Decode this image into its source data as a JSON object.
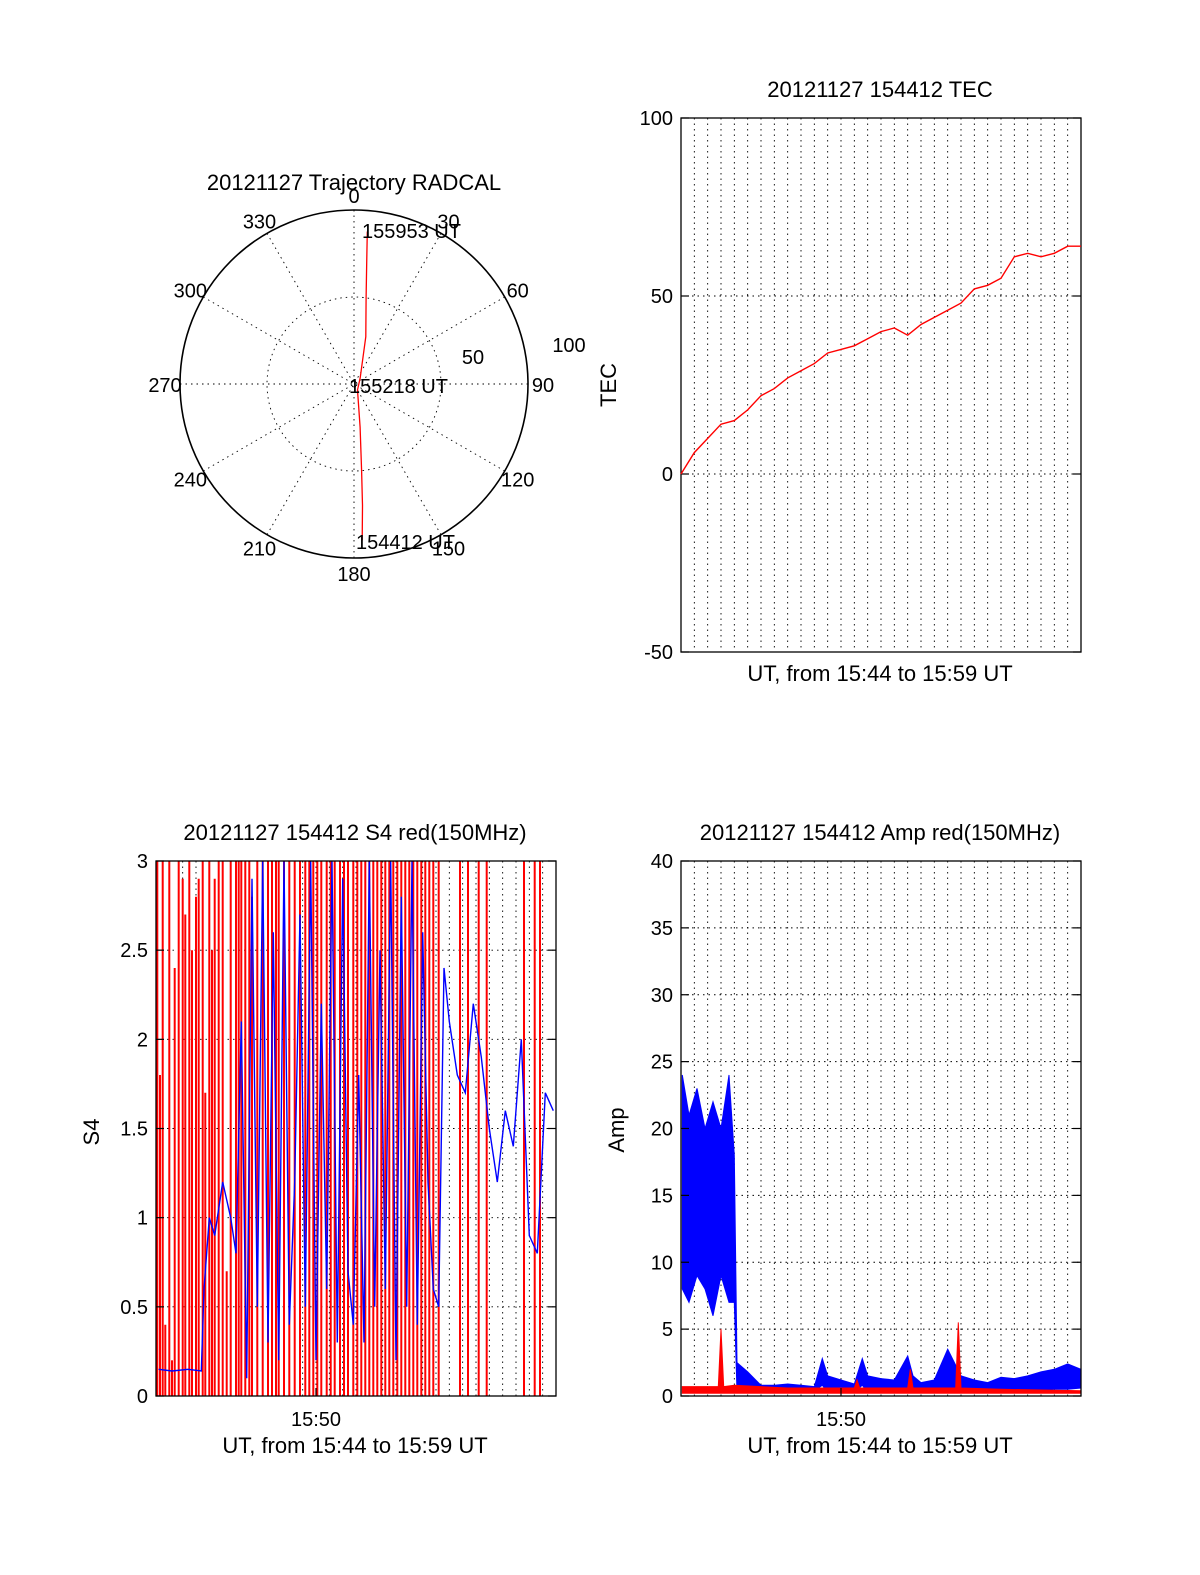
{
  "chart_data": [
    {
      "type": "polar",
      "title": "20121127 Trajectory RADCAL",
      "angle_labels": [
        "0",
        "30",
        "60",
        "90",
        "120",
        "150",
        "180",
        "210",
        "240",
        "270",
        "300",
        "330"
      ],
      "radius_labels": [
        "50",
        "100"
      ],
      "rmax": 100,
      "grid": true,
      "annotations": [
        {
          "label": "155953 UT",
          "az": 5,
          "r": 88
        },
        {
          "label": "155218 UT",
          "az": 0,
          "r": 0
        },
        {
          "label": "154412 UT",
          "az": 177,
          "r": 90
        }
      ],
      "trajectory": [
        {
          "az": 5,
          "r": 88
        },
        {
          "az": 6,
          "r": 70
        },
        {
          "az": 8,
          "r": 50
        },
        {
          "az": 14,
          "r": 28
        },
        {
          "az": 45,
          "r": 5
        },
        {
          "az": 150,
          "r": 4
        },
        {
          "az": 172,
          "r": 25
        },
        {
          "az": 175,
          "r": 50
        },
        {
          "az": 176,
          "r": 70
        },
        {
          "az": 177,
          "r": 90
        }
      ],
      "trajectory_color": "#ff0000"
    },
    {
      "type": "line",
      "title": "20121127 154412 TEC",
      "xlabel": "UT, from 15:44 to 15:59 UT",
      "ylabel": "TEC",
      "xlim": [
        0,
        15
      ],
      "ylim": [
        -50,
        100
      ],
      "yticks": [
        "100",
        "50",
        "0",
        "-50"
      ],
      "xticks": [],
      "grid": true,
      "series": [
        {
          "color": "#ff0000",
          "x": [
            0,
            0.5,
            1,
            1.5,
            2,
            2.5,
            3,
            3.5,
            4,
            4.5,
            5,
            5.5,
            6,
            6.5,
            7,
            7.5,
            8,
            8.5,
            9,
            9.5,
            10,
            10.5,
            11,
            11.5,
            12,
            12.5,
            13,
            13.5,
            14,
            14.5,
            15
          ],
          "y": [
            0,
            6,
            10,
            14,
            15,
            18,
            22,
            24,
            27,
            29,
            31,
            34,
            35,
            36,
            38,
            40,
            41,
            39,
            42,
            44,
            46,
            48,
            52,
            53,
            55,
            61,
            62,
            61,
            62,
            64,
            64
          ]
        }
      ]
    },
    {
      "type": "line",
      "title": "20121127 154412 S4 red(150MHz)",
      "xlabel": "UT, from 15:44 to 15:59 UT",
      "ylabel": "S4",
      "xlim": [
        0,
        15
      ],
      "ylim": [
        0,
        3
      ],
      "yticks": [
        "3",
        "2.5",
        "2",
        "1.5",
        "1",
        "0.5",
        "0"
      ],
      "xticks": [
        {
          "x": 6,
          "label": "15:50"
        }
      ],
      "grid": true,
      "series": [
        {
          "color": "#ff0000",
          "pattern": "spikes",
          "x": [
            0.05,
            0.15,
            0.25,
            0.35,
            0.5,
            0.6,
            0.7,
            0.85,
            1.0,
            1.1,
            1.25,
            1.35,
            1.5,
            1.6,
            1.75,
            1.85,
            2.0,
            2.1,
            2.2,
            2.35,
            2.5,
            2.65,
            2.8,
            3.0,
            3.1,
            3.2,
            3.35,
            3.5,
            3.6,
            3.8,
            4.0,
            4.2,
            4.35,
            4.5,
            4.6,
            4.8,
            5.0,
            5.2,
            5.4,
            5.6,
            5.75,
            5.9,
            6.05,
            6.2,
            6.4,
            6.55,
            6.7,
            6.9,
            7.05,
            7.2,
            7.4,
            7.55,
            7.7,
            7.85,
            8.0,
            8.15,
            8.3,
            8.45,
            8.6,
            8.75,
            8.9,
            9.05,
            9.2,
            9.35,
            9.5,
            9.65,
            9.8,
            9.95,
            10.1,
            10.25,
            10.4,
            10.6,
            11.4,
            11.7,
            12.1,
            12.4,
            13.8,
            14.2,
            14.4
          ],
          "y": [
            3,
            1.8,
            3,
            0.4,
            3,
            0.2,
            2.4,
            3,
            2.9,
            2.7,
            3,
            2.5,
            2.8,
            2.9,
            3,
            1.7,
            3,
            2.5,
            2.9,
            3,
            3,
            0.7,
            3,
            3,
            3,
            3,
            3,
            3,
            2.8,
            3,
            3,
            3,
            3,
            3,
            3,
            3,
            3,
            3,
            3,
            3,
            3,
            3,
            3,
            3,
            3,
            3,
            3,
            3,
            3,
            3,
            3,
            3,
            3,
            3,
            3,
            3,
            3,
            3,
            3,
            3,
            3,
            3,
            3,
            3,
            3,
            3,
            3,
            3,
            3,
            3,
            3,
            3,
            3,
            3,
            3,
            3,
            3,
            3,
            3
          ]
        },
        {
          "color": "#0000ff",
          "pattern": "line",
          "x": [
            0.1,
            0.6,
            1.2,
            1.7,
            1.8,
            2.0,
            2.2,
            2.5,
            2.8,
            3.0,
            3.2,
            3.4,
            3.6,
            3.8,
            4.0,
            4.2,
            4.4,
            4.6,
            4.8,
            5.0,
            5.2,
            5.4,
            5.6,
            5.8,
            6.0,
            6.2,
            6.4,
            6.6,
            6.8,
            7.0,
            7.2,
            7.4,
            7.6,
            7.8,
            8.0,
            8.2,
            8.4,
            8.6,
            8.8,
            9.0,
            9.2,
            9.4,
            9.6,
            9.8,
            10.0,
            10.2,
            10.4,
            10.6,
            10.8,
            11.0,
            11.3,
            11.6,
            11.9,
            12.2,
            12.5,
            12.8,
            13.1,
            13.4,
            13.7,
            14.0,
            14.3,
            14.6,
            14.9
          ],
          "y": [
            0.15,
            0.14,
            0.15,
            0.14,
            0.6,
            1.0,
            0.9,
            1.2,
            1.0,
            0.8,
            2.1,
            0.1,
            2.9,
            0.5,
            3,
            0.3,
            2.6,
            0.2,
            3,
            0.4,
            1.2,
            2.7,
            0.5,
            3,
            0.2,
            2.2,
            0.6,
            3,
            0.3,
            2.9,
            0.7,
            0.4,
            1.8,
            0.3,
            3,
            0.5,
            2.5,
            0.6,
            3,
            0.2,
            2.8,
            0.5,
            3,
            0.4,
            2.6,
            1.2,
            0.6,
            0.5,
            2.4,
            2.1,
            1.8,
            1.7,
            2.2,
            1.9,
            1.5,
            1.2,
            1.6,
            1.4,
            2.0,
            0.9,
            0.8,
            1.7,
            1.6
          ]
        }
      ]
    },
    {
      "type": "line",
      "title": "20121127 154412 Amp red(150MHz)",
      "xlabel": "UT, from 15:44 to 15:59 UT",
      "ylabel": "Amp",
      "xlim": [
        0,
        15
      ],
      "ylim": [
        0,
        40
      ],
      "yticks": [
        "40",
        "35",
        "30",
        "25",
        "20",
        "15",
        "10",
        "5",
        "0"
      ],
      "xticks": [
        {
          "x": 6,
          "label": "15:50"
        }
      ],
      "grid": true,
      "series": [
        {
          "color": "#0000ff",
          "pattern": "band",
          "x": [
            0.05,
            0.3,
            0.6,
            0.9,
            1.2,
            1.5,
            1.8,
            2.0,
            2.1,
            2.5,
            3.0,
            3.5,
            4.0,
            4.5,
            5.0,
            5.3,
            5.5,
            6.0,
            6.5,
            6.8,
            7.0,
            7.5,
            8.0,
            8.5,
            8.7,
            9.0,
            9.5,
            10.0,
            10.5,
            11.0,
            11.5,
            12.0,
            12.5,
            13.0,
            13.5,
            14.0,
            14.5,
            15.0
          ],
          "lo": [
            8,
            7,
            9,
            8,
            6,
            9,
            7,
            7,
            0.3,
            0.4,
            0.3,
            0.3,
            0.3,
            0.3,
            0.4,
            0.8,
            0.3,
            0.3,
            0.3,
            0.8,
            0.3,
            0.3,
            0.3,
            0.3,
            0.5,
            0.3,
            0.3,
            0.4,
            0.3,
            0.3,
            0.4,
            0.3,
            0.4,
            0.4,
            0.4,
            0.5,
            0.5,
            0.6
          ],
          "hi": [
            24,
            21,
            23,
            20,
            22,
            20,
            24,
            18,
            2.5,
            1.8,
            0.8,
            0.8,
            0.9,
            0.8,
            0.7,
            2.8,
            1.5,
            1.2,
            0.9,
            2.8,
            1.5,
            1.3,
            1.2,
            3.0,
            1.5,
            1.0,
            1.2,
            3.5,
            1.5,
            1.2,
            1.0,
            1.4,
            1.3,
            1.5,
            1.8,
            2.0,
            2.4,
            2.0
          ]
        },
        {
          "color": "#ff0000",
          "pattern": "band",
          "x": [
            0.05,
            1.0,
            1.4,
            1.5,
            1.6,
            2.0,
            4.0,
            6.0,
            6.5,
            6.6,
            6.7,
            8.0,
            8.5,
            8.6,
            8.7,
            10.0,
            10.3,
            10.4,
            10.5,
            12.0,
            15.0
          ],
          "lo": [
            0.2,
            0.2,
            0.2,
            0.2,
            0.2,
            0.2,
            0.2,
            0.2,
            0.2,
            0.2,
            0.2,
            0.2,
            0.2,
            0.2,
            0.2,
            0.2,
            0.2,
            0.2,
            0.2,
            0.2,
            0.2
          ],
          "hi": [
            0.7,
            0.7,
            0.7,
            5.0,
            0.7,
            0.8,
            0.6,
            0.6,
            0.6,
            1.2,
            0.6,
            0.6,
            0.6,
            2.0,
            0.6,
            0.6,
            0.6,
            5.5,
            0.6,
            0.5,
            0.4
          ]
        }
      ]
    }
  ]
}
